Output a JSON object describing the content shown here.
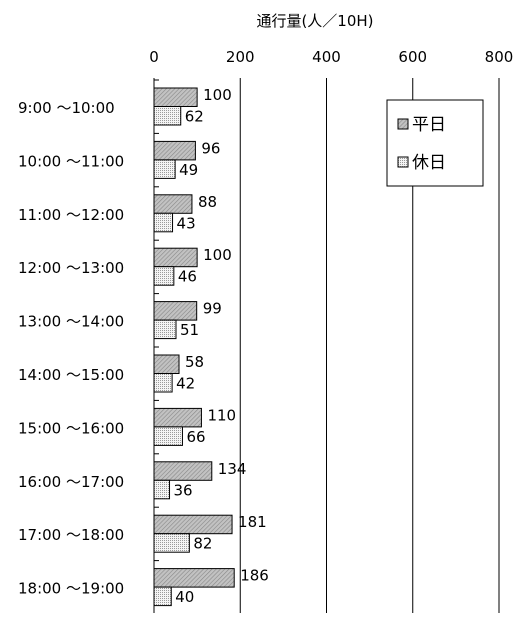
{
  "chart_data": {
    "type": "bar",
    "orientation": "horizontal",
    "title": "通行量(人／10H)",
    "xlim": [
      0,
      800
    ],
    "x_ticks": [
      "0",
      "200",
      "400",
      "600",
      "800"
    ],
    "x_tick_values": [
      0,
      200,
      400,
      600,
      800
    ],
    "categories": [
      "9:00 〜10:00",
      "10:00 〜11:00",
      "11:00 〜12:00",
      "12:00 〜13:00",
      "13:00 〜14:00",
      "14:00 〜15:00",
      "15:00 〜16:00",
      "16:00 〜17:00",
      "17:00 〜18:00",
      "18:00 〜19:00"
    ],
    "series": [
      {
        "name": "平日",
        "values": [
          100,
          96,
          88,
          100,
          99,
          58,
          110,
          134,
          181,
          186
        ],
        "color": "#b0b0b0"
      },
      {
        "name": "休日",
        "values": [
          62,
          49,
          43,
          46,
          51,
          42,
          66,
          36,
          82,
          40
        ],
        "color": "#e6e6e6"
      }
    ],
    "gridlines": "vertical",
    "legend_position": "top-right"
  }
}
